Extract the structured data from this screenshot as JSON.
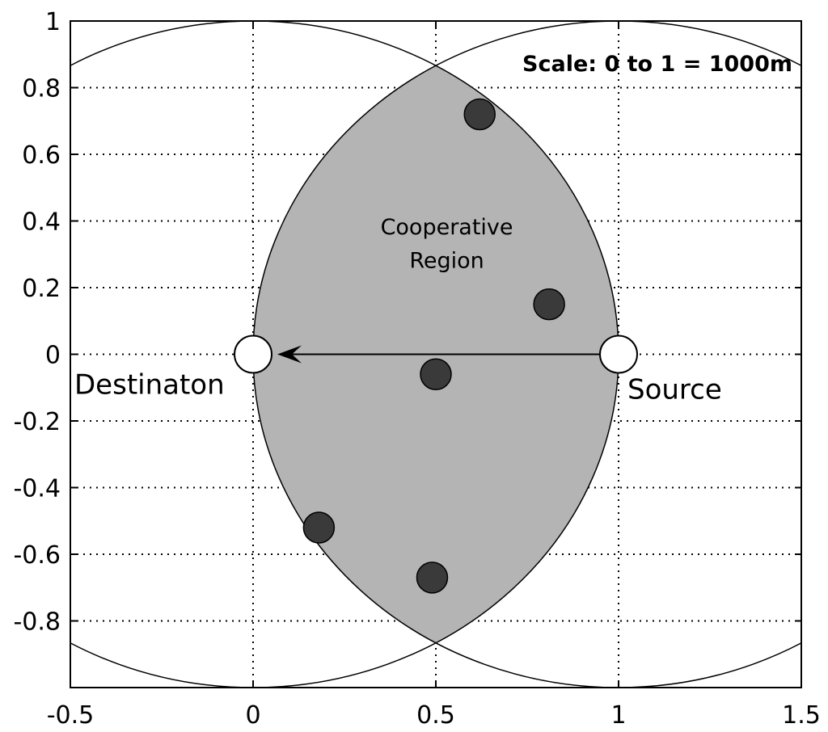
{
  "chart_data": {
    "type": "scatter",
    "title": "",
    "xlabel": "",
    "ylabel": "",
    "xlim": [
      -0.5,
      1.5
    ],
    "ylim": [
      -1,
      1
    ],
    "grid": true,
    "grid_style": "dotted",
    "x_ticks": [
      {
        "value": -0.5,
        "label": "-0.5"
      },
      {
        "value": 0,
        "label": "0"
      },
      {
        "value": 0.5,
        "label": "0.5"
      },
      {
        "value": 1,
        "label": "1"
      },
      {
        "value": 1.5,
        "label": "1.5"
      }
    ],
    "y_ticks": [
      {
        "value": 1,
        "label": "1"
      },
      {
        "value": 0.8,
        "label": "0.8"
      },
      {
        "value": 0.6,
        "label": "0.6"
      },
      {
        "value": 0.4,
        "label": "0.4"
      },
      {
        "value": 0.2,
        "label": "0.2"
      },
      {
        "value": 0,
        "label": "0"
      },
      {
        "value": -0.2,
        "label": "-0.2"
      },
      {
        "value": -0.4,
        "label": "-0.4"
      },
      {
        "value": -0.6,
        "label": "-0.6"
      },
      {
        "value": -0.8,
        "label": "-0.8"
      }
    ],
    "circles": [
      {
        "center": [
          0,
          0
        ],
        "radius": 1
      },
      {
        "center": [
          1,
          0
        ],
        "radius": 1
      }
    ],
    "region": {
      "label_lines": [
        "Cooperative",
        "Region"
      ],
      "fill": "#b4b4b4"
    },
    "relays": {
      "color": "#3a3a3a",
      "points": [
        [
          0.62,
          0.72
        ],
        [
          0.81,
          0.15
        ],
        [
          0.5,
          -0.06
        ],
        [
          0.18,
          -0.52
        ],
        [
          0.49,
          -0.67
        ]
      ]
    },
    "source": {
      "x": 1,
      "y": 0,
      "label": "Source"
    },
    "destination": {
      "x": 0,
      "y": 0,
      "label": "Destinaton"
    },
    "annotation": "Scale: 0 to 1 = 1000m"
  }
}
